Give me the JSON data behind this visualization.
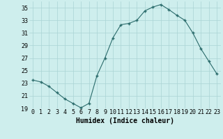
{
  "x": [
    0,
    1,
    2,
    3,
    4,
    5,
    6,
    7,
    8,
    9,
    10,
    11,
    12,
    13,
    14,
    15,
    16,
    17,
    18,
    19,
    20,
    21,
    22,
    23
  ],
  "y": [
    23.5,
    23.2,
    22.5,
    21.5,
    20.5,
    19.8,
    19.1,
    19.8,
    24.2,
    27.0,
    30.2,
    32.3,
    32.5,
    33.0,
    34.5,
    35.1,
    35.5,
    34.7,
    33.8,
    33.0,
    31.0,
    28.5,
    26.5,
    24.5
  ],
  "xlabel": "Humidex (Indice chaleur)",
  "ylim": [
    19,
    36
  ],
  "yticks": [
    19,
    21,
    23,
    25,
    27,
    29,
    31,
    33,
    35
  ],
  "xlim": [
    -0.5,
    23.5
  ],
  "bg_color": "#ceeeed",
  "grid_color": "#aad4d4",
  "line_color": "#2a6b6b",
  "marker_color": "#2a6b6b",
  "xlabel_fontsize": 7,
  "tick_fontsize": 6
}
